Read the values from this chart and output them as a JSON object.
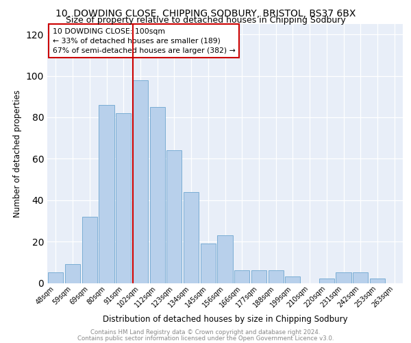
{
  "title": "10, DOWDING CLOSE, CHIPPING SODBURY, BRISTOL, BS37 6BX",
  "subtitle": "Size of property relative to detached houses in Chipping Sodbury",
  "xlabel": "Distribution of detached houses by size in Chipping Sodbury",
  "ylabel": "Number of detached properties",
  "footnote1": "Contains HM Land Registry data © Crown copyright and database right 2024.",
  "footnote2": "Contains public sector information licensed under the Open Government Licence v3.0.",
  "categories": [
    "48sqm",
    "59sqm",
    "69sqm",
    "80sqm",
    "91sqm",
    "102sqm",
    "112sqm",
    "123sqm",
    "134sqm",
    "145sqm",
    "156sqm",
    "166sqm",
    "177sqm",
    "188sqm",
    "199sqm",
    "210sqm",
    "220sqm",
    "231sqm",
    "242sqm",
    "253sqm",
    "263sqm"
  ],
  "values": [
    5,
    9,
    32,
    86,
    82,
    98,
    85,
    64,
    44,
    19,
    23,
    6,
    6,
    6,
    3,
    0,
    2,
    5,
    5,
    2,
    0
  ],
  "bar_color": "#b8d0eb",
  "bar_edge_color": "#7aadd4",
  "vline_x_index": 5,
  "vline_color": "#cc0000",
  "annotation_title": "10 DOWDING CLOSE: 100sqm",
  "annotation_line1": "← 33% of detached houses are smaller (189)",
  "annotation_line2": "67% of semi-detached houses are larger (382) →",
  "annotation_box_color": "#cc0000",
  "ylim": [
    0,
    125
  ],
  "yticks": [
    0,
    20,
    40,
    60,
    80,
    100,
    120
  ],
  "bg_color": "#e8eef8",
  "title_fontsize": 10,
  "subtitle_fontsize": 9
}
